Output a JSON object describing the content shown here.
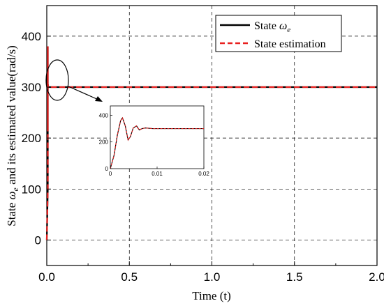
{
  "chart_data": {
    "type": "line",
    "title": "",
    "xlabel": "Time (t)",
    "ylabel": "State ωe and its estimated value(rad/s)",
    "xlim": [
      0,
      2.0
    ],
    "ylim": [
      -50,
      460
    ],
    "xticks": [
      "0.0",
      "0.5",
      "1.0",
      "1.5",
      "2.0"
    ],
    "yticks": [
      "0",
      "100",
      "200",
      "300",
      "400"
    ],
    "grid": true,
    "legend_position": "top-right",
    "series": [
      {
        "name": "State ωe",
        "color": "#000000",
        "style": "solid",
        "x": [
          0,
          0.0008,
          0.0015,
          0.0022,
          0.0026,
          0.0032,
          0.0038,
          0.0043,
          0.0049,
          0.0056,
          0.0062,
          0.0068,
          0.0075,
          0.009,
          0.012,
          0.016,
          0.02,
          0.5,
          1.0,
          1.5,
          2.0
        ],
        "values": [
          0,
          100,
          250,
          360,
          380,
          320,
          215,
          240,
          305,
          320,
          290,
          300,
          305,
          300,
          300,
          300,
          300,
          300,
          300,
          300,
          300
        ]
      },
      {
        "name": "State estimation",
        "color": "#e8201f",
        "style": "dashed",
        "x": [
          0,
          0.0008,
          0.0015,
          0.0022,
          0.0026,
          0.0032,
          0.0038,
          0.0043,
          0.0049,
          0.0056,
          0.0062,
          0.0068,
          0.0075,
          0.009,
          0.012,
          0.016,
          0.02,
          0.5,
          1.0,
          1.5,
          2.0
        ],
        "values": [
          0,
          100,
          250,
          360,
          380,
          320,
          215,
          240,
          305,
          320,
          290,
          300,
          305,
          300,
          300,
          300,
          300,
          300,
          300,
          300,
          300
        ]
      }
    ],
    "inset": {
      "xlim": [
        0,
        0.02
      ],
      "ylim": [
        0,
        470
      ],
      "xticks": [
        "0",
        "0.01",
        "0.02"
      ],
      "yticks": [
        "0",
        "200",
        "400"
      ]
    }
  },
  "legend": {
    "state_prefix": "State ",
    "omega": "ω",
    "sub_e": "e",
    "estimation": "State estimation"
  },
  "ylabel_parts": {
    "prefix": "State ",
    "omega": "ω",
    "sub": "e",
    "suffix": " and its estimated value(rad/s)"
  }
}
